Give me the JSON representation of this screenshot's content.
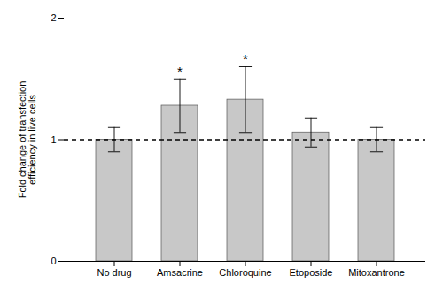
{
  "chart_data": {
    "type": "bar",
    "ylabel": "Fold change of transfection\nefficiency in live cells",
    "categories": [
      "No drug",
      "Amsacrine",
      "Chloroquine",
      "Etoposide",
      "Mitoxantrone"
    ],
    "values": [
      1.0,
      1.28,
      1.33,
      1.06,
      1.0
    ],
    "errors": [
      0.1,
      0.22,
      0.27,
      0.12,
      0.1
    ],
    "color": "#c8c8c8",
    "edge_color": "#555555",
    "ylim": [
      0,
      2
    ],
    "yticks": [
      0,
      1,
      2
    ],
    "grid": false,
    "reference_line": {
      "y": 1.0,
      "line_style": "dashed"
    },
    "annotations": [
      {
        "category": "Amsacrine",
        "text": "*"
      },
      {
        "category": "Chloroquine",
        "text": "*"
      }
    ]
  }
}
